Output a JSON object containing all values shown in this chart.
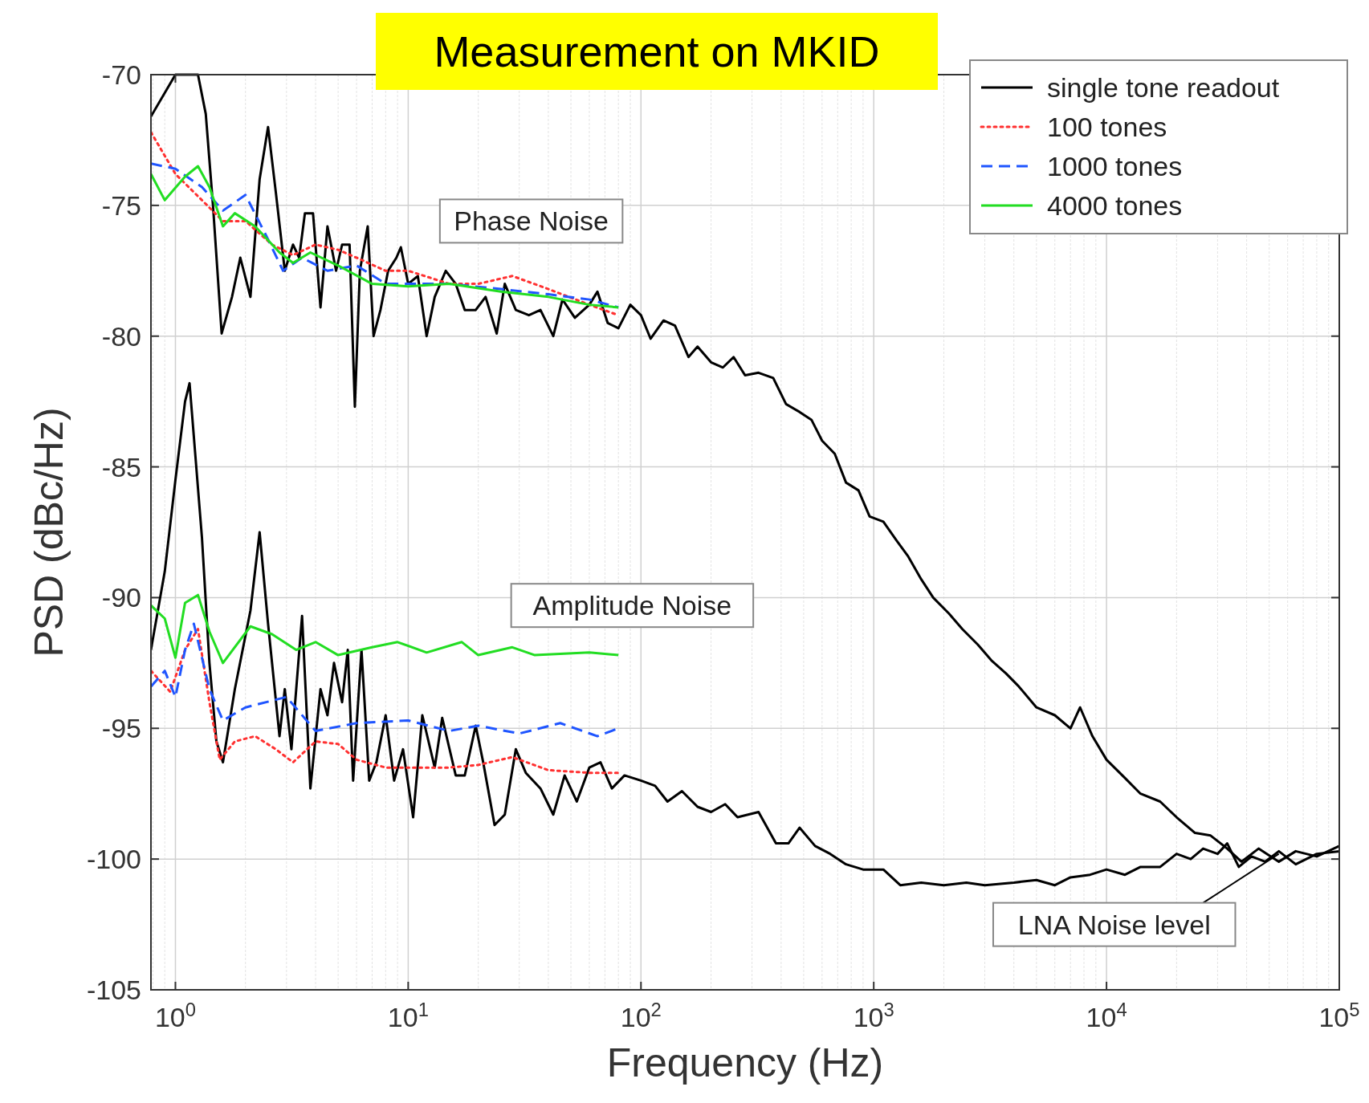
{
  "chart_data": {
    "type": "line",
    "title": "Measurement on MKID",
    "xlabel": "Frequency (Hz)",
    "ylabel": "PSD (dBc/Hz)",
    "log": "x",
    "grid": true,
    "legend": "top right",
    "xlim": [
      0.785,
      100000
    ],
    "ylim": [
      -105,
      -70
    ],
    "xticks": [
      {
        "value": 1,
        "label": "10$^{0}$"
      },
      {
        "value": 10,
        "label": "10$^{1}$"
      },
      {
        "value": 100,
        "label": "10$^{2}$"
      },
      {
        "value": 1000,
        "label": "10$^{3}$"
      },
      {
        "value": 10000,
        "label": "10$^{4}$"
      },
      {
        "value": 100000,
        "label": "10$^{5}$"
      }
    ],
    "yticks": [
      -105,
      -100,
      -95,
      -90,
      -85,
      -80,
      -75,
      -70
    ],
    "annotations": [
      "Phase Noise",
      "Amplitude Noise",
      {
        "text": "LNA Noise level",
        "x": 55000,
        "y": -99.8
      }
    ],
    "series": [
      {
        "name": "single tone readout",
        "color": "#000000",
        "line_style": "solid",
        "x": [
          0.785,
          1.0,
          1.25,
          1.35,
          1.45,
          1.58,
          1.75,
          1.9,
          2.1,
          2.3,
          2.5,
          2.7,
          2.95,
          3.2,
          3.4,
          3.6,
          3.9,
          4.2,
          4.5,
          4.9,
          5.2,
          5.6,
          5.9,
          6.2,
          6.7,
          7.1,
          7.6,
          8.2,
          8.9,
          9.3,
          10,
          11,
          12,
          13,
          14.5,
          16,
          17.5,
          19.5,
          21.5,
          24,
          26,
          29,
          33,
          37,
          42,
          46,
          52,
          60,
          65,
          72,
          80,
          90,
          100,
          110,
          125,
          140,
          160,
          175,
          200,
          225,
          250,
          280,
          320,
          370,
          420,
          480,
          540,
          600,
          680,
          760,
          860,
          960,
          1100,
          1250,
          1400,
          1600,
          1800,
          2100,
          2400,
          2800,
          3200,
          3700,
          4200,
          5000,
          6000,
          7000,
          7700,
          8700,
          10000,
          12000,
          14000,
          17000,
          20000,
          24000,
          28000,
          33000,
          38000,
          45000,
          55000,
          65000,
          80000,
          100000
        ],
        "values": [
          -71.6,
          -70,
          -70,
          -71.5,
          -75,
          -79.9,
          -78.5,
          -77,
          -78.5,
          -74,
          -72,
          -74.5,
          -77.5,
          -76.5,
          -77,
          -75.3,
          -75.3,
          -78.9,
          -75.8,
          -77.5,
          -76.5,
          -76.5,
          -82.7,
          -77.5,
          -75.8,
          -80,
          -79,
          -77.5,
          -77,
          -76.6,
          -78,
          -77.7,
          -80,
          -78.5,
          -77.5,
          -78,
          -79,
          -79,
          -78.5,
          -79.9,
          -78,
          -79,
          -79.2,
          -79,
          -80,
          -78.6,
          -79.3,
          -78.8,
          -78.3,
          -79.5,
          -79.7,
          -78.8,
          -79.2,
          -80.1,
          -79.4,
          -79.6,
          -80.8,
          -80.4,
          -81,
          -81.2,
          -80.8,
          -81.5,
          -81.4,
          -81.6,
          -82.6,
          -82.9,
          -83.2,
          -84,
          -84.5,
          -85.6,
          -85.9,
          -86.9,
          -87.1,
          -87.8,
          -88.4,
          -89.3,
          -90,
          -90.6,
          -91.2,
          -91.8,
          -92.4,
          -92.9,
          -93.4,
          -94.2,
          -94.5,
          -95,
          -94.2,
          -95.3,
          -96.2,
          -96.9,
          -97.5,
          -97.8,
          -98.4,
          -99,
          -99.1,
          -99.6,
          -100.1,
          -99.6,
          -100.1,
          -99.7,
          -99.9,
          -99.5
        ]
      },
      {
        "name": "100 tones",
        "color": "#ff3030",
        "line_style": "dotted",
        "x": [
          0.785,
          1,
          1.3,
          1.6,
          2,
          2.6,
          3.2,
          4,
          5,
          6,
          8,
          10,
          15,
          20,
          28,
          40,
          60,
          80
        ],
        "values": [
          -72.2,
          -73.8,
          -74.8,
          -75.6,
          -75.6,
          -76.5,
          -76.9,
          -76.5,
          -76.7,
          -77,
          -77.5,
          -77.5,
          -78,
          -78,
          -77.7,
          -78.2,
          -78.8,
          -79.2
        ]
      },
      {
        "name": "1000 tones",
        "color": "#1f55ff",
        "line_style": "dashed",
        "x": [
          0.785,
          1,
          1.3,
          1.6,
          2,
          2.5,
          2.9,
          3.5,
          4.5,
          6,
          8,
          10,
          15,
          25,
          40,
          60,
          80
        ],
        "values": [
          -73.4,
          -73.6,
          -74.3,
          -75.2,
          -74.6,
          -76.3,
          -77.5,
          -77,
          -77.5,
          -77.3,
          -78,
          -78,
          -78,
          -78.2,
          -78.4,
          -78.6,
          -78.9
        ]
      },
      {
        "name": "4000 tones",
        "color": "#22dd22",
        "line_style": "solid",
        "x": [
          0.785,
          0.9,
          1.1,
          1.25,
          1.4,
          1.6,
          1.8,
          2.2,
          2.8,
          3.2,
          3.8,
          5,
          7,
          10,
          15,
          25,
          40,
          60,
          80
        ],
        "values": [
          -73.8,
          -74.8,
          -73.9,
          -73.5,
          -74.3,
          -75.8,
          -75.3,
          -75.8,
          -76.8,
          -77.2,
          -76.8,
          -77.3,
          -78,
          -78.1,
          -78,
          -78.3,
          -78.5,
          -78.8,
          -78.9
        ]
      },
      {
        "color": "#000000",
        "line_style": "solid",
        "x": [
          0.785,
          0.9,
          1.0,
          1.1,
          1.15,
          1.3,
          1.4,
          1.5,
          1.6,
          1.8,
          2.1,
          2.3,
          2.5,
          2.8,
          2.95,
          3.15,
          3.5,
          3.8,
          4.2,
          4.5,
          4.8,
          5.2,
          5.5,
          5.8,
          6.3,
          6.8,
          7.3,
          8,
          8.7,
          9.5,
          10.5,
          11.5,
          13,
          14,
          16,
          17.5,
          19.5,
          21,
          23.5,
          26,
          29,
          32,
          37,
          42,
          47,
          53,
          60,
          67,
          75,
          85,
          100,
          115,
          130,
          150,
          175,
          200,
          230,
          260,
          320,
          380,
          430,
          480,
          560,
          650,
          760,
          900,
          1100,
          1300,
          1600,
          2000,
          2500,
          3000,
          4000,
          5000,
          6000,
          7000,
          8500,
          10000,
          12000,
          14000,
          17000,
          20000,
          23000,
          26000,
          30000,
          33000,
          37000,
          42000,
          48000,
          55000,
          65000,
          80000,
          100000
        ],
        "values": [
          -92,
          -89,
          -85.5,
          -82.5,
          -81.8,
          -87.7,
          -92.5,
          -95.5,
          -96.3,
          -93.5,
          -90.5,
          -87.5,
          -91,
          -95.3,
          -93.5,
          -95.8,
          -90.7,
          -97.3,
          -93.5,
          -94.5,
          -92.5,
          -94,
          -92,
          -97,
          -92,
          -97,
          -96.3,
          -94.5,
          -97,
          -95.8,
          -98.4,
          -94.5,
          -96.5,
          -94.6,
          -96.8,
          -96.8,
          -94.9,
          -96.3,
          -98.7,
          -98.3,
          -95.8,
          -96.7,
          -97.3,
          -98.3,
          -96.8,
          -97.8,
          -96.5,
          -96.3,
          -97.3,
          -96.8,
          -97,
          -97.2,
          -97.8,
          -97.4,
          -98,
          -98.2,
          -97.9,
          -98.4,
          -98.2,
          -99.4,
          -99.4,
          -98.8,
          -99.5,
          -99.8,
          -100.2,
          -100.4,
          -100.4,
          -101,
          -100.9,
          -101,
          -100.9,
          -101,
          -100.9,
          -100.8,
          -101,
          -100.7,
          -100.6,
          -100.4,
          -100.6,
          -100.3,
          -100.3,
          -99.8,
          -100,
          -99.6,
          -99.8,
          -99.4,
          -100.3,
          -99.9,
          -100.1,
          -99.7,
          -100.2,
          -99.8,
          -99.7
        ]
      },
      {
        "color": "#ff3030",
        "line_style": "dotted",
        "x": [
          0.785,
          0.95,
          1.1,
          1.25,
          1.4,
          1.55,
          1.8,
          2.2,
          2.7,
          3.2,
          4,
          5,
          6,
          8,
          10,
          15,
          20,
          28,
          40,
          60,
          80
        ],
        "values": [
          -92.8,
          -93.6,
          -92,
          -91.2,
          -94,
          -96.2,
          -95.5,
          -95.3,
          -95.8,
          -96.3,
          -95.5,
          -95.6,
          -96.2,
          -96.5,
          -96.5,
          -96.5,
          -96.4,
          -96.1,
          -96.6,
          -96.7,
          -96.7
        ]
      },
      {
        "color": "#1f55ff",
        "line_style": "dashed",
        "x": [
          0.785,
          0.9,
          1.0,
          1.1,
          1.2,
          1.4,
          1.6,
          2,
          3,
          4,
          6,
          10,
          15,
          20,
          30,
          45,
          65,
          80
        ],
        "values": [
          -93.4,
          -92.8,
          -93.8,
          -92,
          -91,
          -93.5,
          -94.7,
          -94.2,
          -93.8,
          -95.1,
          -94.8,
          -94.7,
          -95.1,
          -94.9,
          -95.2,
          -94.8,
          -95.3,
          -95
        ]
      },
      {
        "color": "#22dd22",
        "line_style": "solid",
        "x": [
          0.785,
          0.9,
          1.0,
          1.1,
          1.25,
          1.4,
          1.6,
          2.1,
          2.6,
          3.3,
          4,
          5,
          7,
          9,
          12,
          17,
          20,
          28,
          35,
          60,
          80
        ],
        "values": [
          -90.3,
          -90.8,
          -92.3,
          -90.2,
          -89.9,
          -91.3,
          -92.5,
          -91.1,
          -91.4,
          -92,
          -91.7,
          -92.2,
          -91.9,
          -91.7,
          -92.1,
          -91.7,
          -92.2,
          -91.9,
          -92.2,
          -92.1,
          -92.2
        ]
      }
    ]
  }
}
